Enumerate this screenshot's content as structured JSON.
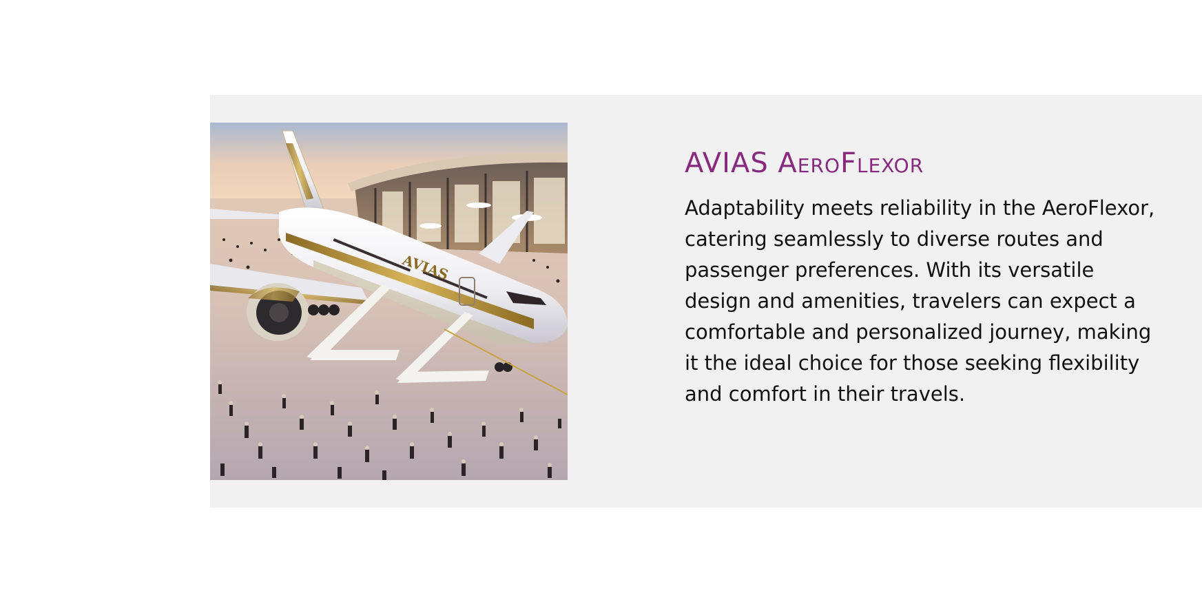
{
  "section": {
    "title": "AVIAS AeroFlexor",
    "description": "Adaptability meets reliability in the AeroFlexor, catering seamlessly to diverse routes and passenger preferences. With its versatile design and amenities, travelers can expect a comfortable and personalized journey, making it the ideal choice for those seeking flexibility and comfort in their travels.",
    "image": {
      "fuselage_logo": "AVIAS"
    }
  },
  "colors": {
    "title": "#87297f",
    "panel_background": "#f1f1f1",
    "text": "#111111",
    "accent_gold": "#b8912f"
  }
}
